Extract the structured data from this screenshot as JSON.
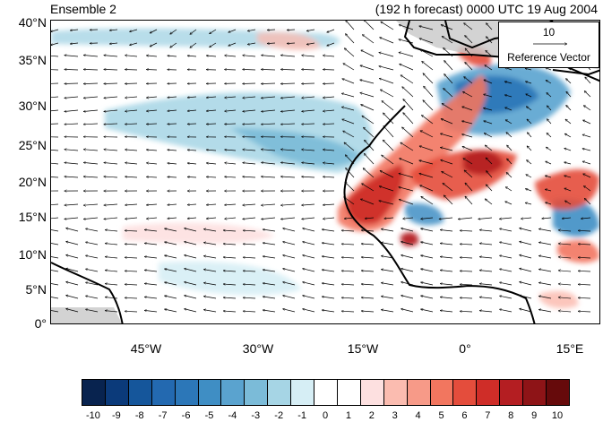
{
  "header": {
    "left_title": "Ensemble 2",
    "right_title": "(192 h forecast) 0000 UTC 19 Aug 2004"
  },
  "map": {
    "lat_labels": [
      "40°N",
      "35°N",
      "30°N",
      "25°N",
      "20°N",
      "15°N",
      "10°N",
      "5°N",
      "0°"
    ],
    "lon_labels": [
      "45°W",
      "30°W",
      "15°W",
      "0°",
      "15°E"
    ],
    "reference_vector": {
      "value": "10",
      "label": "Reference Vector"
    },
    "colors": {
      "land_outline": "#000000",
      "missing": "#c8c8c8",
      "arrow": "#000000"
    }
  },
  "colorbar": {
    "tick_labels": [
      "-10",
      "-9",
      "-8",
      "-7",
      "-6",
      "-5",
      "-4",
      "-3",
      "-2",
      "-1",
      "0",
      "1",
      "2",
      "3",
      "4",
      "5",
      "6",
      "7",
      "8",
      "9",
      "10"
    ],
    "colors": [
      "#08234f",
      "#0b3a7a",
      "#15569b",
      "#2369b0",
      "#2c77b8",
      "#3f8ec4",
      "#5aa3cf",
      "#7bbbd8",
      "#a6d5e5",
      "#d6eef5",
      "#ffffff",
      "#ffffff",
      "#fde0e0",
      "#fbbcb0",
      "#f79a88",
      "#f2765f",
      "#e44d3c",
      "#cf2d28",
      "#b41e22",
      "#8e1417",
      "#660a0b"
    ]
  }
}
